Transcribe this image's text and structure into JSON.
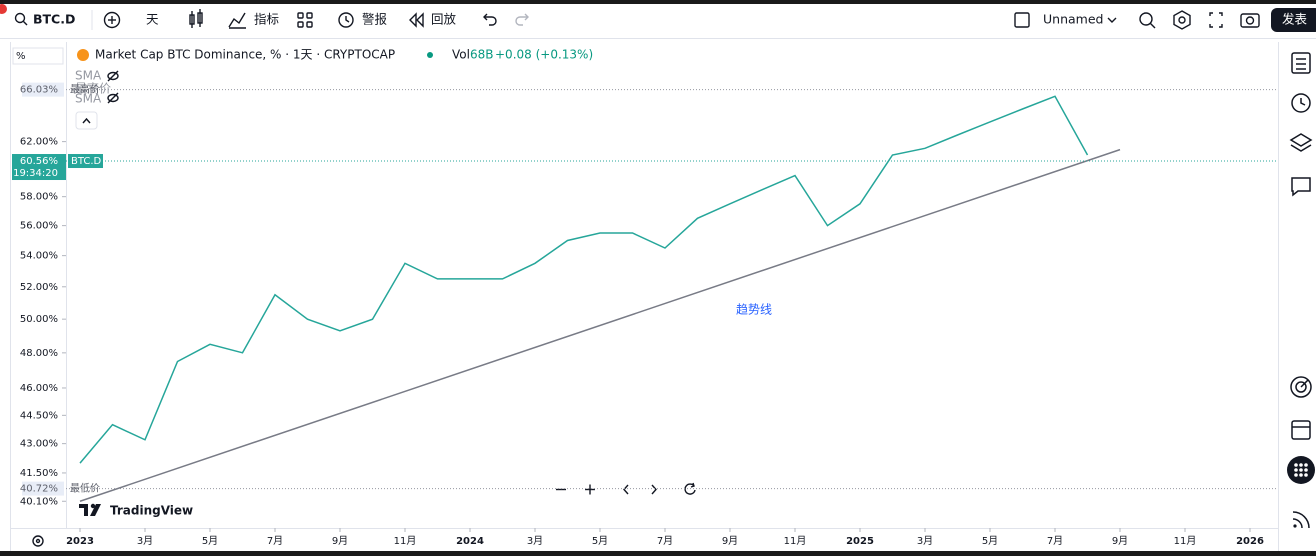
{
  "toolbar": {
    "symbol": "BTC.D",
    "interval": "天",
    "indicators": "指标",
    "alerts": "警报",
    "replay": "回放",
    "layout": "Unnamed",
    "publish": "发表"
  },
  "chart_data": {
    "type": "line",
    "title": "Market Cap BTC Dominance, % · 1天 · CRYPTOCAP",
    "volume": {
      "label": "Vol",
      "value": "68B"
    },
    "change": "+0.08 (+0.13%)",
    "indicators": [
      {
        "name": "SMA",
        "source": "最高价"
      },
      {
        "name": "SMA"
      }
    ],
    "y_unit": "%",
    "x": [
      "2023-01",
      "2023-02",
      "2023-03",
      "2023-04",
      "2023-05",
      "2023-06",
      "2023-07",
      "2023-08",
      "2023-09",
      "2023-10",
      "2023-11",
      "2023-12",
      "2024-01",
      "2024-02",
      "2024-03",
      "2024-04",
      "2024-05",
      "2024-06",
      "2024-07",
      "2024-08",
      "2024-09",
      "2024-10",
      "2024-11",
      "2024-12",
      "2025-01",
      "2025-02",
      "2025-03",
      "2025-04",
      "2025-05",
      "2025-06",
      "2025-07",
      "2025-08"
    ],
    "series": [
      {
        "name": "BTC.D",
        "color": "#26a69a",
        "values": [
          42.0,
          44.0,
          43.2,
          47.5,
          48.5,
          48.0,
          51.5,
          50.0,
          49.3,
          50.0,
          53.5,
          52.5,
          52.5,
          52.5,
          53.5,
          55.0,
          55.5,
          55.5,
          54.5,
          56.5,
          57.5,
          58.5,
          59.5,
          56.0,
          57.5,
          61.0,
          61.5,
          62.5,
          63.5,
          64.5,
          65.5,
          61.0
        ]
      }
    ],
    "ylim": [
      39.2,
      69.7
    ],
    "log_y": true,
    "grid": false,
    "yticks": [
      {
        "value": 62,
        "label": "62.00%"
      },
      {
        "value": 58,
        "label": "58.00%"
      },
      {
        "value": 56,
        "label": "56.00%"
      },
      {
        "value": 54,
        "label": "54.00%"
      },
      {
        "value": 52,
        "label": "52.00%"
      },
      {
        "value": 50,
        "label": "50.00%"
      },
      {
        "value": 48,
        "label": "48.00%"
      },
      {
        "value": 46,
        "label": "46.00%"
      },
      {
        "value": 44.5,
        "label": "44.50%"
      },
      {
        "value": 43,
        "label": "43.00%"
      },
      {
        "value": 41.5,
        "label": "41.50%"
      },
      {
        "value": 40.1,
        "label": "40.10%"
      }
    ],
    "xlim": [
      "2023-01",
      "2026-01"
    ],
    "xticks": [
      {
        "value": "2023-01",
        "label": "2023"
      },
      {
        "value": "2023-03",
        "label": "3月"
      },
      {
        "value": "2023-05",
        "label": "5月"
      },
      {
        "value": "2023-07",
        "label": "7月"
      },
      {
        "value": "2023-09",
        "label": "9月"
      },
      {
        "value": "2023-11",
        "label": "11月"
      },
      {
        "value": "2024-01",
        "label": "2024"
      },
      {
        "value": "2024-03",
        "label": "3月"
      },
      {
        "value": "2024-05",
        "label": "5月"
      },
      {
        "value": "2024-07",
        "label": "7月"
      },
      {
        "value": "2024-09",
        "label": "9月"
      },
      {
        "value": "2024-11",
        "label": "11月"
      },
      {
        "value": "2025-01",
        "label": "2025"
      },
      {
        "value": "2025-03",
        "label": "3月"
      },
      {
        "value": "2025-05",
        "label": "5月"
      },
      {
        "value": "2025-07",
        "label": "7月"
      },
      {
        "value": "2025-09",
        "label": "9月"
      },
      {
        "value": "2025-11",
        "label": "11月"
      },
      {
        "value": "2026-01",
        "label": "2026"
      }
    ],
    "price_markers": [
      {
        "value": 66.03,
        "label": "66.03%",
        "note": "最高价"
      },
      {
        "value": 40.72,
        "label": "40.72%",
        "note": "最低价"
      }
    ],
    "last_price": {
      "value": 60.56,
      "label": "60.56%",
      "symbol": "BTC.D",
      "countdown": "19:34:20"
    },
    "trendline": {
      "label": "趋势线",
      "from": {
        "x": "2023-01",
        "value": 40.1
      },
      "to": {
        "x": "2025-09",
        "value": 61.4
      }
    }
  },
  "branding": "TradingView"
}
